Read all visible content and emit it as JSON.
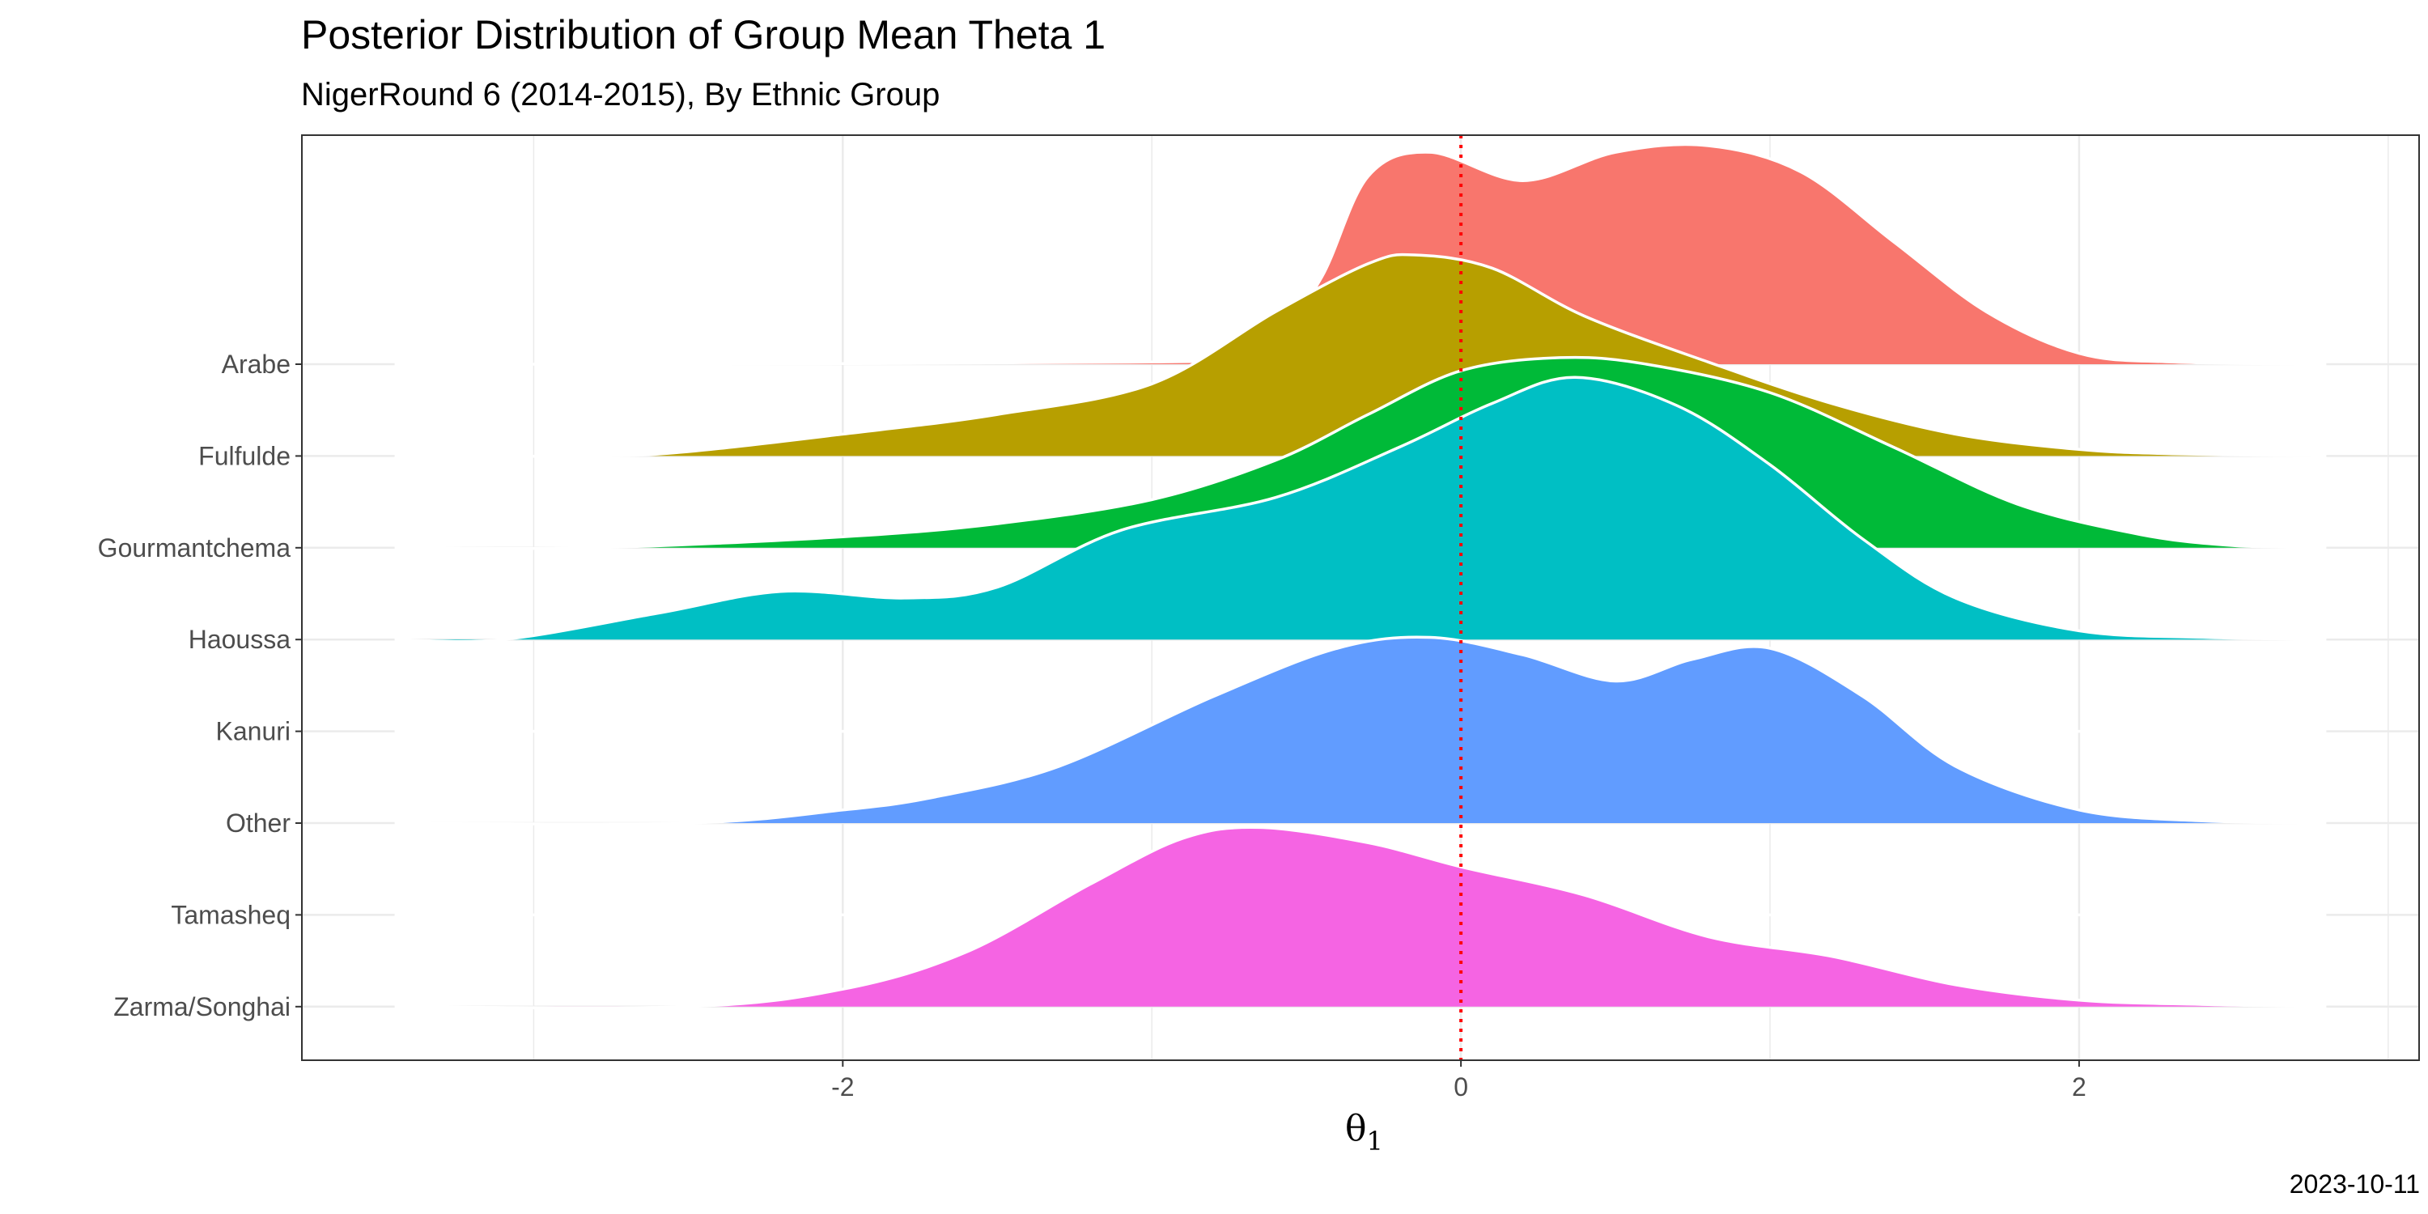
{
  "chart_data": {
    "type": "ridgeline",
    "title": "Posterior Distribution of Group Mean Theta 1",
    "subtitle": "NigerRound 6 (2014-2015), By Ethnic Group",
    "xlabel": "θ",
    "xlabel_subscript": "1",
    "caption": "2023-10-11",
    "xlim": [
      -3.75,
      3.1
    ],
    "x_ticks": [
      -2,
      0,
      2
    ],
    "x_tick_labels": [
      "-2",
      "0",
      "2"
    ],
    "reference_line": {
      "x": 0,
      "color": "#ff0000",
      "style": "dotted"
    },
    "grid": true,
    "legend": "none",
    "categories": [
      "Arabe",
      "Fulfulde",
      "Gourmantchema",
      "Haoussa",
      "Kanuri",
      "Other",
      "Tamasheq",
      "Zarma/Songhai"
    ],
    "series": [
      {
        "name": "Arabe",
        "color": "#F8766D",
        "x": [
          -3.45,
          -2.6,
          -1.0,
          -0.8,
          -0.6,
          -0.45,
          -0.3,
          -0.1,
          0.2,
          0.5,
          0.8,
          1.1,
          1.4,
          1.7,
          2.0,
          2.3,
          2.8
        ],
        "density": [
          0,
          0,
          0.01,
          0.03,
          0.12,
          0.4,
          0.86,
          0.97,
          0.84,
          0.97,
          1.0,
          0.88,
          0.56,
          0.24,
          0.05,
          0.01,
          0
        ]
      },
      {
        "name": "Fulfulde",
        "color": "#B79F00",
        "x": [
          -3.45,
          -2.8,
          -2.5,
          -2.0,
          -1.5,
          -1.0,
          -0.6,
          -0.3,
          -0.15,
          0.1,
          0.4,
          0.8,
          1.2,
          1.6,
          2.0,
          2.3,
          2.8
        ],
        "density": [
          0,
          0,
          0.02,
          0.1,
          0.19,
          0.33,
          0.66,
          0.88,
          0.92,
          0.86,
          0.64,
          0.43,
          0.24,
          0.1,
          0.03,
          0.01,
          0
        ]
      },
      {
        "name": "Gourmantchema",
        "color": "#00BA38",
        "x": [
          -3.45,
          -2.8,
          -2.0,
          -1.5,
          -1.0,
          -0.6,
          -0.3,
          0.0,
          0.32,
          0.6,
          1.0,
          1.4,
          1.8,
          2.2,
          2.5,
          2.8
        ],
        "density": [
          0,
          0,
          0.05,
          0.11,
          0.22,
          0.4,
          0.61,
          0.81,
          0.87,
          0.84,
          0.71,
          0.46,
          0.2,
          0.06,
          0.01,
          0
        ]
      },
      {
        "name": "Haoussa",
        "color": "#00BFC4",
        "x": [
          -3.45,
          -3.1,
          -2.6,
          -2.2,
          -1.8,
          -1.5,
          -1.1,
          -0.6,
          -0.2,
          0.1,
          0.37,
          0.7,
          1.0,
          1.3,
          1.6,
          2.0,
          2.4,
          2.8
        ],
        "density": [
          0,
          0,
          0.12,
          0.22,
          0.19,
          0.24,
          0.5,
          0.65,
          0.88,
          1.08,
          1.2,
          1.07,
          0.8,
          0.46,
          0.19,
          0.04,
          0.01,
          0
        ]
      },
      {
        "name": "Kanuri",
        "color": "#D39200",
        "x": [
          -3.45,
          2.8
        ],
        "density": [
          0,
          0
        ]
      },
      {
        "name": "Other",
        "color": "#619CFF",
        "x": [
          -3.45,
          -2.5,
          -2.0,
          -1.7,
          -1.3,
          -0.8,
          -0.4,
          -0.1,
          0.2,
          0.5,
          0.75,
          1.0,
          1.3,
          1.6,
          2.0,
          2.4,
          2.8
        ],
        "density": [
          0,
          0,
          0.06,
          0.12,
          0.26,
          0.58,
          0.8,
          0.85,
          0.77,
          0.65,
          0.75,
          0.8,
          0.58,
          0.26,
          0.06,
          0.01,
          0
        ]
      },
      {
        "name": "Tamasheq",
        "color": "#DB72FB",
        "x": [
          -3.45,
          2.8
        ],
        "density": [
          0,
          0
        ]
      },
      {
        "name": "Zarma/Songhai",
        "color": "#F564E3",
        "x": [
          -3.45,
          -2.5,
          -2.0,
          -1.6,
          -1.2,
          -0.9,
          -0.65,
          -0.3,
          0.0,
          0.4,
          0.8,
          1.2,
          1.6,
          2.0,
          2.4,
          2.8
        ],
        "density": [
          0,
          0,
          0.08,
          0.25,
          0.56,
          0.77,
          0.82,
          0.75,
          0.64,
          0.51,
          0.32,
          0.23,
          0.1,
          0.03,
          0.01,
          0
        ]
      }
    ]
  }
}
